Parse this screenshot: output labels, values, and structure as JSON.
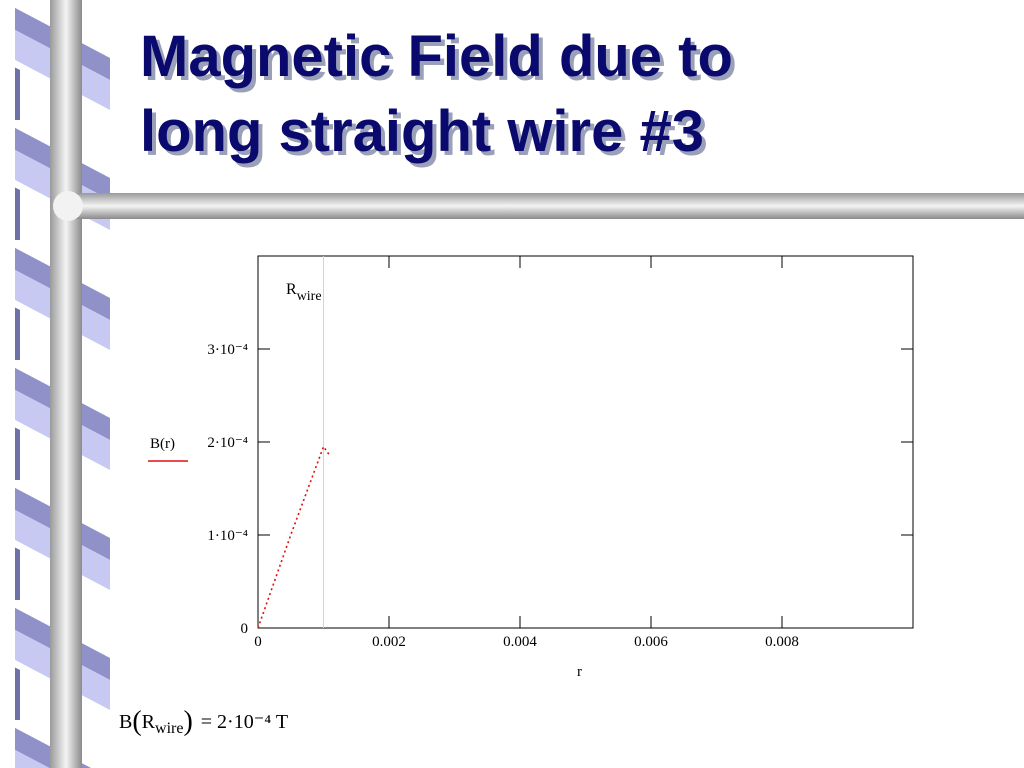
{
  "slide": {
    "title_lines": [
      "Magnetic Field due to",
      "long straight wire #3"
    ]
  },
  "chart_data": {
    "type": "line",
    "x_label": "r",
    "x": [
      0,
      0.0005,
      0.001,
      0.0011
    ],
    "series": [
      {
        "name": "B(r)",
        "color": "#e01010",
        "values": [
          0,
          0.0001,
          0.000195,
          0.000185
        ]
      }
    ],
    "xlim": [
      0,
      0.01
    ],
    "xticks": [
      0,
      0.002,
      0.004,
      0.006,
      0.008
    ],
    "ylim": [
      0,
      0.0004
    ],
    "yticks": [
      0,
      {
        "value": 0.0001,
        "label": "1·10⁻⁴"
      },
      {
        "value": 0.0002,
        "label": "2·10⁻⁴"
      },
      {
        "value": 0.0003,
        "label": "3·10⁻⁴"
      }
    ],
    "marker": {
      "x": 0.001,
      "label": "R",
      "subscript": "wire",
      "color": "#f0c4d4"
    }
  },
  "equation": {
    "func": "B",
    "arg": "R",
    "sub": "wire",
    "rhs": "= 2·10⁻⁴ T"
  }
}
